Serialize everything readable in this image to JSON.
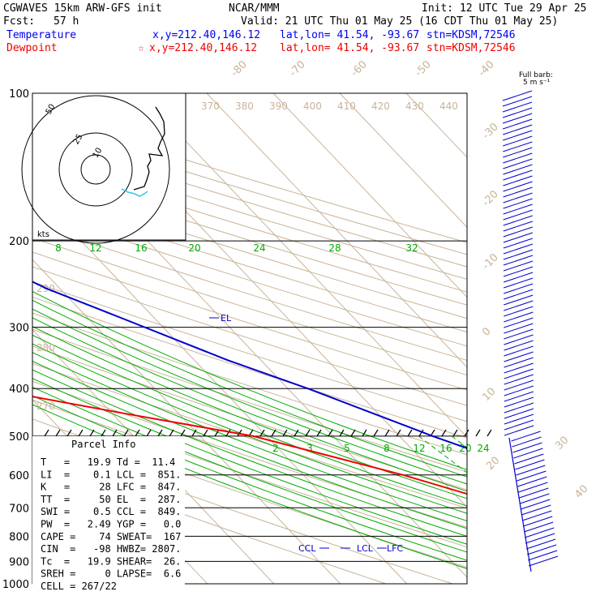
{
  "header": {
    "model": "CGWAVES 15km ARW-GFS init",
    "org": "NCAR/MMM",
    "init": "Init: 12 UTC Tue 29 Apr 25",
    "fcst_label": "Fcst:",
    "fcst_value": "57 h",
    "valid": "Valid: 21 UTC Thu 01 May 25 (16 CDT Thu 01 May 25)",
    "temp_label": "Temperature",
    "temp_xy": "x,y=212.40,146.12",
    "temp_latlon": "lat,lon= 41.54, -93.67",
    "temp_stn": "stn=KDSM,72546",
    "dew_label": "Dewpoint",
    "dew_xy": "x,y=212.40,146.12",
    "dew_latlon": "lat,lon= 41.54, -93.67",
    "dew_stn": "stn=KDSM,72546",
    "star": "☆"
  },
  "barb_legend": {
    "line1": "Full barb:",
    "line2": "5 m s⁻¹"
  },
  "hodograph": {
    "unit": "kts",
    "rings": [
      "10",
      "25",
      "50"
    ]
  },
  "parcel": {
    "title": "Parcel Info",
    "rows": [
      "T   =   19.9 Td =  11.4",
      "LI  =    0.1 LCL =  851.",
      "K   =     28 LFC =  847.",
      "TT  =     50 EL  =  287.",
      "SWI =    0.5 CCL =  849.",
      "PW  =   2.49 YGP =   0.0",
      "CAPE =    74 SWEAT=  167",
      "CIN  =   -98 HWBZ= 2807.",
      "Tc  =   19.9 SHEAR=  26.",
      "SREH =     0 LAPSE=  6.6",
      "CELL = 267/22"
    ]
  },
  "chart_data": {
    "type": "line",
    "title": "",
    "ylabel": "",
    "xlabel": "",
    "pressure_levels": [
      100,
      200,
      300,
      400,
      500,
      600,
      700,
      800,
      900,
      1000
    ],
    "isotherm_labels": [
      "-80",
      "-70",
      "-60",
      "-50",
      "-40",
      "-30",
      "-20",
      "-10",
      "0",
      "10",
      "20",
      "30",
      "40"
    ],
    "theta_labels_top": [
      "370",
      "380",
      "390",
      "400",
      "410",
      "420",
      "430",
      "440"
    ],
    "theta_labels_left": [
      "290",
      "280",
      "270"
    ],
    "mixing_ratio_labels_200": [
      "8",
      "12",
      "16",
      "20",
      "24",
      "28",
      "32"
    ],
    "mixing_ratio_labels_500": [
      "2",
      "3",
      "5",
      "8",
      "12",
      "16",
      "20",
      "24"
    ],
    "levels_annotations": [
      "EL",
      "CCL",
      "LCL",
      "LFC"
    ],
    "series": [
      {
        "name": "Temperature",
        "color": "#0000cc",
        "points": [
          [
            100,
            -60
          ],
          [
            150,
            -62
          ],
          [
            200,
            -60
          ],
          [
            250,
            -52
          ],
          [
            287,
            -45
          ],
          [
            350,
            -35
          ],
          [
            400,
            -27
          ],
          [
            500,
            -15
          ],
          [
            600,
            -4
          ],
          [
            700,
            4
          ],
          [
            750,
            8
          ],
          [
            800,
            12
          ],
          [
            850,
            15
          ],
          [
            900,
            18
          ],
          [
            925,
            19.9
          ]
        ]
      },
      {
        "name": "Dewpoint",
        "color": "#ee0000",
        "points": [
          [
            100,
            -90
          ],
          [
            150,
            -100
          ],
          [
            190,
            -95
          ],
          [
            200,
            -98
          ],
          [
            250,
            -76
          ],
          [
            300,
            -72
          ],
          [
            400,
            -75
          ],
          [
            450,
            -58
          ],
          [
            500,
            -42
          ],
          [
            600,
            -25
          ],
          [
            700,
            -13
          ],
          [
            750,
            -5
          ],
          [
            800,
            5
          ],
          [
            850,
            10
          ],
          [
            900,
            11
          ],
          [
            925,
            11.4
          ]
        ]
      }
    ],
    "hodograph_trace": "black line with cyan near-surface segment",
    "winds": "wind barbs at right edge, column 100-1000 hPa",
    "colors": {
      "isotherm": "#c9b398",
      "dry_adiabat": "#c9b398",
      "mixing_ratio": "#00aa00",
      "isobar": "#000000"
    }
  }
}
